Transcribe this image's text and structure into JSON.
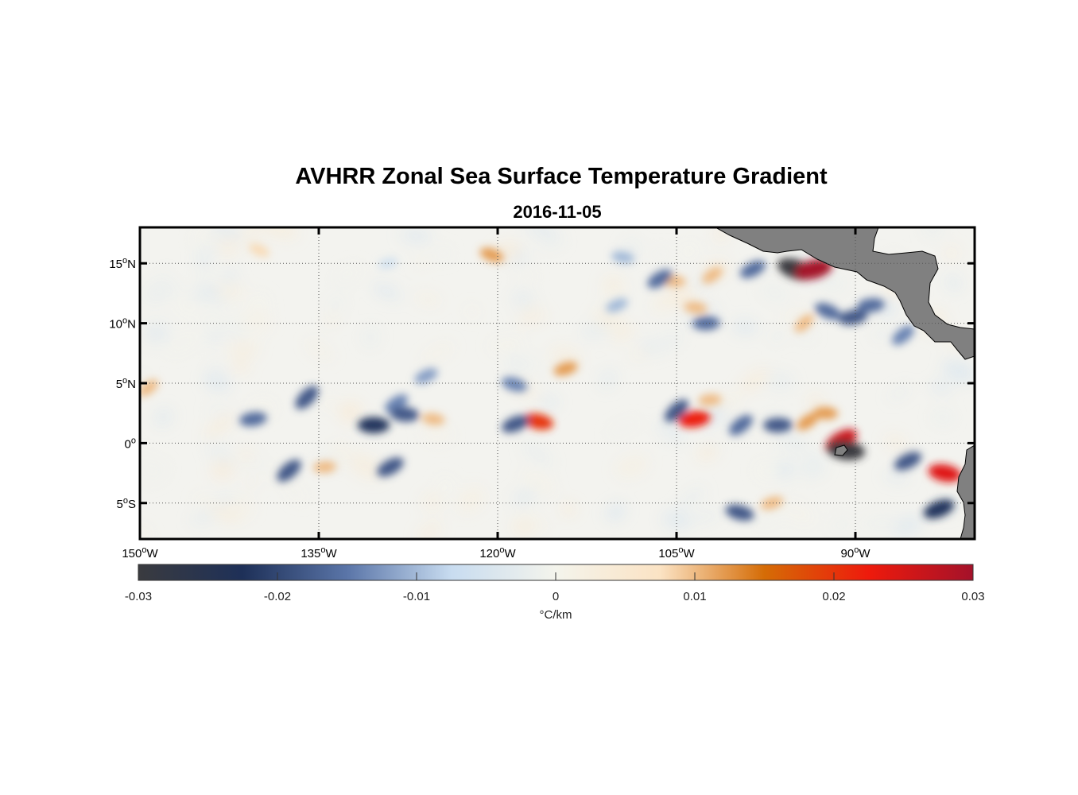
{
  "header": {
    "title": "AVHRR Zonal Sea Surface Temperature Gradient",
    "subtitle": "2016-11-05"
  },
  "map": {
    "lon_range": [
      -150,
      -80
    ],
    "lat_range": [
      -8,
      18
    ],
    "lon_ticks": [
      {
        "value": -150,
        "label": "150",
        "sup": "o",
        "suffix": "W"
      },
      {
        "value": -135,
        "label": "135",
        "sup": "o",
        "suffix": "W"
      },
      {
        "value": -120,
        "label": "120",
        "sup": "o",
        "suffix": "W"
      },
      {
        "value": -105,
        "label": "105",
        "sup": "o",
        "suffix": "W"
      },
      {
        "value": -90,
        "label": "90",
        "sup": "o",
        "suffix": "W"
      }
    ],
    "lat_ticks": [
      {
        "value": 15,
        "label": "15",
        "sup": "o",
        "suffix": "N"
      },
      {
        "value": 10,
        "label": "10",
        "sup": "o",
        "suffix": "N"
      },
      {
        "value": 5,
        "label": "5",
        "sup": "o",
        "suffix": "N"
      },
      {
        "value": 0,
        "label": "0",
        "sup": "o",
        "suffix": ""
      },
      {
        "value": -5,
        "label": "5",
        "sup": "o",
        "suffix": "S"
      }
    ],
    "grid": "dotted",
    "land_color": "#808080",
    "features": [
      {
        "lon": -136.0,
        "lat": 3.8,
        "value": -0.018
      },
      {
        "lon": -140.5,
        "lat": 2.0,
        "value": -0.016
      },
      {
        "lon": -137.5,
        "lat": -2.3,
        "value": -0.018
      },
      {
        "lon": -134.5,
        "lat": -2.0,
        "value": 0.01
      },
      {
        "lon": -149.3,
        "lat": 4.6,
        "value": 0.01
      },
      {
        "lon": -130.4,
        "lat": 1.5,
        "value": -0.022
      },
      {
        "lon": -128.5,
        "lat": 3.3,
        "value": -0.014
      },
      {
        "lon": -127.8,
        "lat": 2.4,
        "value": -0.018
      },
      {
        "lon": -129.0,
        "lat": -2.0,
        "value": -0.018
      },
      {
        "lon": -125.4,
        "lat": 2.0,
        "value": 0.01
      },
      {
        "lon": -126.0,
        "lat": 5.6,
        "value": -0.012
      },
      {
        "lon": -116.6,
        "lat": 1.8,
        "value": 0.02
      },
      {
        "lon": -118.5,
        "lat": 1.6,
        "value": -0.018
      },
      {
        "lon": -118.6,
        "lat": 4.9,
        "value": -0.014
      },
      {
        "lon": -114.3,
        "lat": 6.2,
        "value": 0.012
      },
      {
        "lon": -120.5,
        "lat": 15.7,
        "value": 0.012
      },
      {
        "lon": -129.2,
        "lat": 15.0,
        "value": -0.006
      },
      {
        "lon": -140.0,
        "lat": 16.1,
        "value": 0.008
      },
      {
        "lon": -103.5,
        "lat": 2.0,
        "value": 0.022
      },
      {
        "lon": -105.0,
        "lat": 2.7,
        "value": -0.018
      },
      {
        "lon": -102.2,
        "lat": 3.6,
        "value": 0.01
      },
      {
        "lon": -99.6,
        "lat": 1.5,
        "value": -0.016
      },
      {
        "lon": -96.5,
        "lat": 1.5,
        "value": -0.018
      },
      {
        "lon": -94.0,
        "lat": 1.8,
        "value": 0.012
      },
      {
        "lon": -92.5,
        "lat": 2.5,
        "value": 0.012
      },
      {
        "lon": -91.2,
        "lat": 0.2,
        "value": 0.026
      },
      {
        "lon": -90.8,
        "lat": -0.6,
        "value": -0.03
      },
      {
        "lon": -85.6,
        "lat": -1.5,
        "value": -0.018
      },
      {
        "lon": -82.5,
        "lat": -2.5,
        "value": 0.024
      },
      {
        "lon": -83.0,
        "lat": -5.5,
        "value": -0.022
      },
      {
        "lon": -99.7,
        "lat": -5.8,
        "value": -0.018
      },
      {
        "lon": -97.0,
        "lat": -5.0,
        "value": 0.01
      },
      {
        "lon": -95.0,
        "lat": 14.5,
        "value": -0.03
      },
      {
        "lon": -93.5,
        "lat": 14.5,
        "value": 0.03
      },
      {
        "lon": -92.3,
        "lat": 11.0,
        "value": -0.016
      },
      {
        "lon": -90.2,
        "lat": 10.5,
        "value": -0.018
      },
      {
        "lon": -94.3,
        "lat": 10.0,
        "value": 0.01
      },
      {
        "lon": -88.7,
        "lat": 11.5,
        "value": -0.016
      },
      {
        "lon": -86.0,
        "lat": 9.0,
        "value": -0.014
      },
      {
        "lon": -102.5,
        "lat": 10.0,
        "value": -0.016
      },
      {
        "lon": -102.0,
        "lat": 14.0,
        "value": 0.01
      },
      {
        "lon": -105.2,
        "lat": 13.5,
        "value": 0.01
      },
      {
        "lon": -106.4,
        "lat": 13.7,
        "value": -0.016
      },
      {
        "lon": -103.4,
        "lat": 11.3,
        "value": 0.01
      },
      {
        "lon": -98.6,
        "lat": 14.5,
        "value": -0.016
      },
      {
        "lon": -109.5,
        "lat": 15.5,
        "value": -0.01
      },
      {
        "lon": -110.0,
        "lat": 11.5,
        "value": -0.01
      }
    ]
  },
  "colorbar": {
    "min": -0.03,
    "max": 0.03,
    "ticks": [
      "-0.03",
      "-0.02",
      "-0.01",
      "0",
      "0.01",
      "0.02",
      "0.03"
    ],
    "tick_values": [
      -0.03,
      -0.02,
      -0.01,
      0,
      0.01,
      0.02,
      0.03
    ],
    "unit": "°C/km",
    "stops": [
      "#3a3b3f",
      "#1e3058",
      "#5a75a8",
      "#c8dcf0",
      "#f4f4ec",
      "#fbe3c4",
      "#d56c06",
      "#ee1a0c",
      "#a4122a"
    ]
  }
}
